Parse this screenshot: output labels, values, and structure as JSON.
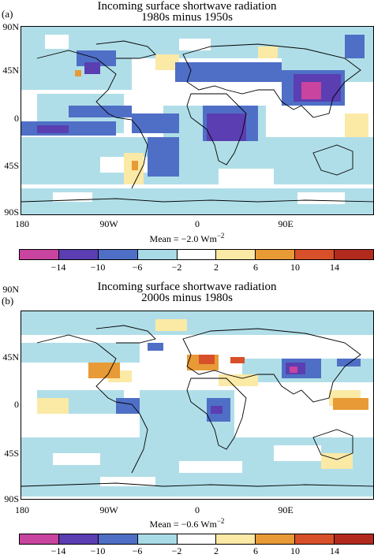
{
  "panels": [
    {
      "label": "(a)",
      "title_line1": "Incoming surface shortwave radiation",
      "title_line2": "1980s minus 1950s",
      "lat_labels": [
        "90N",
        "45N",
        "0",
        "45S",
        "90S"
      ],
      "lon_labels": [
        "180",
        "90W",
        "0",
        "90E"
      ],
      "mean_prefix": "Mean = −2.0 Wm",
      "mean_exp": "−2",
      "mean_value": -2.0
    },
    {
      "label": "(b)",
      "title_line1": "Incoming surface shortwave radiation",
      "title_line2": "2000s minus 1980s",
      "lat_labels": [
        "90N",
        "45N",
        "0",
        "45S",
        "90S"
      ],
      "lon_labels": [
        "180",
        "90W",
        "0",
        "90E"
      ],
      "mean_prefix": "Mean = −0.6 Wm",
      "mean_exp": "−2",
      "mean_value": -0.6
    }
  ],
  "colorbar": {
    "ticks": [
      "−14",
      "−10",
      "−6",
      "−2",
      "2",
      "6",
      "10",
      "14"
    ],
    "colors": [
      "#c8449e",
      "#5a3eb2",
      "#4f6fc6",
      "#a8dbe6",
      "#ffffff",
      "#fbe9a6",
      "#e89a36",
      "#d8502a",
      "#b22a1e"
    ]
  }
}
